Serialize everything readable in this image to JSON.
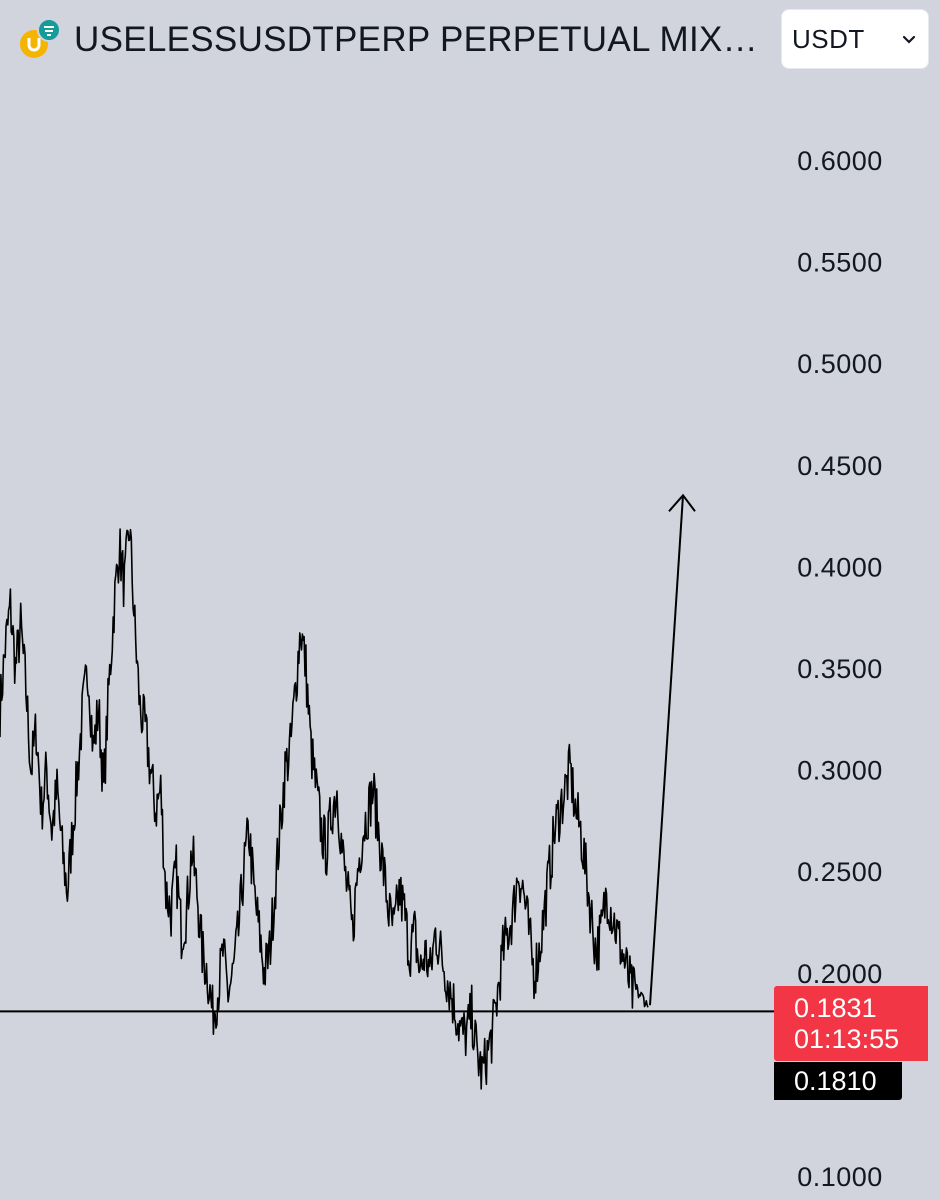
{
  "header": {
    "title": "USELESSUSDTPERP PERPETUAL MIX…",
    "currency": "USDT"
  },
  "colors": {
    "background": "#d1d4dc",
    "price_line": "#000000",
    "last_price_badge": "#f23645",
    "logo_yellow": "#f5b400",
    "logo_teal": "#169b9b"
  },
  "icons": [
    "useless-coin-logo-icon",
    "exchange-badge-icon",
    "chevron-down-icon"
  ],
  "chart_data": {
    "type": "line",
    "ylim": [
      0.07,
      0.63
    ],
    "yticks": [
      "0.6000",
      "0.5500",
      "0.5000",
      "0.4500",
      "0.4000",
      "0.3500",
      "0.3000",
      "0.2500",
      "0.2000",
      "0.1000"
    ],
    "grid": false,
    "legend": "none",
    "series": [
      {
        "values": [
          0.33,
          0.36,
          0.38,
          0.35,
          0.37,
          0.34,
          0.3,
          0.32,
          0.28,
          0.3,
          0.27,
          0.29,
          0.26,
          0.24,
          0.27,
          0.3,
          0.33,
          0.35,
          0.31,
          0.33,
          0.29,
          0.34,
          0.38,
          0.41,
          0.39,
          0.42,
          0.37,
          0.33,
          0.32,
          0.3,
          0.28,
          0.29,
          0.24,
          0.23,
          0.25,
          0.22,
          0.23,
          0.26,
          0.24,
          0.21,
          0.2,
          0.18,
          0.19,
          0.21,
          0.19,
          0.2,
          0.22,
          0.25,
          0.27,
          0.24,
          0.22,
          0.2,
          0.21,
          0.24,
          0.27,
          0.3,
          0.31,
          0.34,
          0.37,
          0.35,
          0.31,
          0.29,
          0.27,
          0.26,
          0.28,
          0.29,
          0.26,
          0.24,
          0.22,
          0.25,
          0.27,
          0.28,
          0.29,
          0.27,
          0.25,
          0.23,
          0.22,
          0.24,
          0.23,
          0.21,
          0.22,
          0.2,
          0.21,
          0.2,
          0.22,
          0.21,
          0.2,
          0.19,
          0.18,
          0.17,
          0.17,
          0.18,
          0.16,
          0.15,
          0.16,
          0.17,
          0.19,
          0.21,
          0.22,
          0.23,
          0.25,
          0.24,
          0.22,
          0.2,
          0.21,
          0.23,
          0.25,
          0.27,
          0.28,
          0.29,
          0.3,
          0.28,
          0.27,
          0.25,
          0.23,
          0.21,
          0.22,
          0.24,
          0.23,
          0.22,
          0.21,
          0.2,
          0.19,
          0.19,
          0.188,
          0.183
        ]
      }
    ],
    "horizontal_line": {
      "value": 0.181,
      "label": "0.1810"
    },
    "last_price": {
      "value": 0.1831,
      "label": "0.1831",
      "countdown": "01:13:55"
    },
    "arrow": {
      "from": 0.1831,
      "to": 0.435,
      "direction": "up"
    }
  }
}
